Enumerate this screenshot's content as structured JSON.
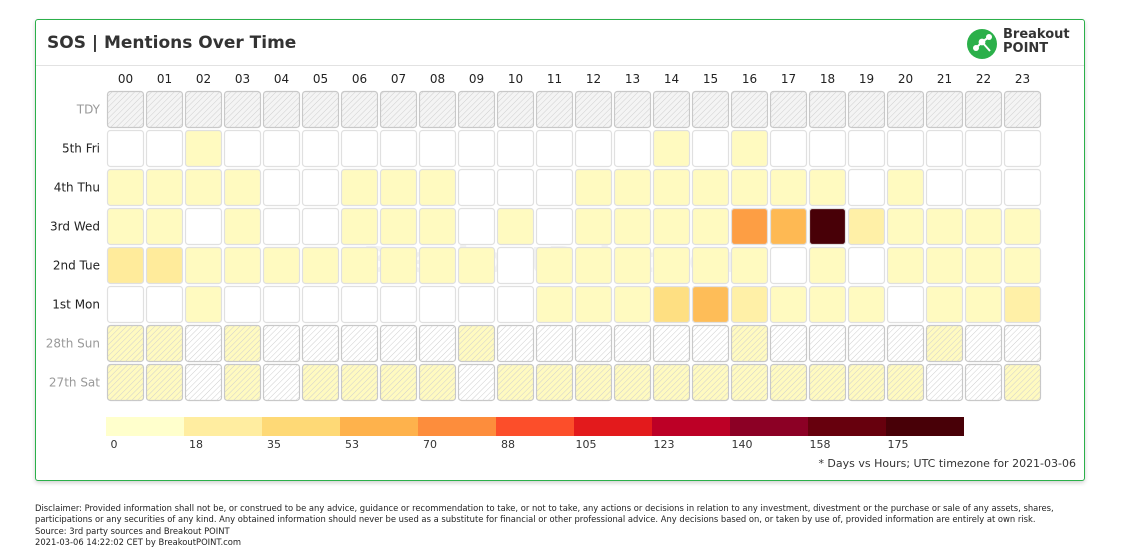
{
  "card": {
    "title": "SOS | Mentions Over Time",
    "logo": {
      "line1": "Breakout",
      "line2": "POINT"
    },
    "watermark": "BreakoutPoint.com",
    "footnote": "* Days vs Hours; UTC timezone for 2021-03-06"
  },
  "disclaimer": {
    "line1": "Disclaimer: Provided information shall not be, or construed to be any advice, guidance or recommendation to take, or not to take, any actions or decisions in relation to any investment, divestment or the purchase or sale of any assets, shares,",
    "line2": "participations or any securities of any kind. Any obtained information should never be used as a substitute for financial or other professional advice. Any decisions based on, or taken by use of, provided information are entirely at own risk.",
    "line3": "Source: 3rd party sources and Breakout POINT",
    "line4": "2021-03-06 14:22:02 CET by BreakoutPOINT.com"
  },
  "chart_data": {
    "type": "heatmap",
    "title": "SOS | Mentions Over Time",
    "x": [
      "00",
      "01",
      "02",
      "03",
      "04",
      "05",
      "06",
      "07",
      "08",
      "09",
      "10",
      "11",
      "12",
      "13",
      "14",
      "15",
      "16",
      "17",
      "18",
      "19",
      "20",
      "21",
      "22",
      "23"
    ],
    "y": [
      "TDY",
      "5th Fri",
      "4th Thu",
      "3rd Wed",
      "2nd Tue",
      "1st Mon",
      "28th Sun",
      "27th Sat"
    ],
    "weekend_rows": [
      "TDY",
      "28th Sun",
      "27th Sat"
    ],
    "values": [
      [
        null,
        null,
        null,
        null,
        null,
        null,
        null,
        null,
        null,
        null,
        null,
        null,
        null,
        null,
        null,
        null,
        null,
        null,
        null,
        null,
        null,
        null,
        null,
        null
      ],
      [
        0,
        0,
        5,
        0,
        0,
        0,
        0,
        0,
        0,
        0,
        0,
        0,
        0,
        0,
        5,
        0,
        5,
        0,
        0,
        0,
        0,
        0,
        0,
        0
      ],
      [
        5,
        5,
        5,
        5,
        0,
        0,
        5,
        5,
        5,
        0,
        0,
        0,
        5,
        5,
        5,
        5,
        5,
        5,
        5,
        0,
        5,
        0,
        0,
        0
      ],
      [
        5,
        5,
        0,
        5,
        0,
        0,
        5,
        5,
        5,
        0,
        5,
        0,
        5,
        5,
        5,
        5,
        62,
        50,
        175,
        15,
        5,
        5,
        5,
        5
      ],
      [
        20,
        20,
        5,
        5,
        5,
        5,
        5,
        5,
        5,
        5,
        0,
        5,
        5,
        5,
        5,
        5,
        5,
        0,
        5,
        0,
        5,
        5,
        5,
        5
      ],
      [
        0,
        0,
        5,
        0,
        0,
        0,
        0,
        0,
        0,
        0,
        0,
        5,
        5,
        5,
        30,
        48,
        15,
        5,
        5,
        5,
        0,
        5,
        5,
        15
      ],
      [
        5,
        5,
        0,
        5,
        0,
        0,
        0,
        0,
        0,
        5,
        0,
        0,
        0,
        0,
        0,
        0,
        5,
        0,
        0,
        0,
        0,
        5,
        0,
        0
      ],
      [
        5,
        5,
        0,
        5,
        0,
        5,
        5,
        5,
        5,
        0,
        5,
        5,
        5,
        5,
        5,
        5,
        5,
        5,
        5,
        5,
        5,
        0,
        0,
        5
      ]
    ],
    "color_scale": {
      "ticks": [
        0,
        18,
        35,
        53,
        70,
        88,
        105,
        123,
        140,
        158,
        175
      ],
      "colors": [
        "#ffffcc",
        "#ffeda0",
        "#fed976",
        "#feb24c",
        "#fd8d3c",
        "#fc4e2a",
        "#e31a1c",
        "#bd0026",
        "#8c0025",
        "#67000d",
        "#480007"
      ]
    }
  }
}
